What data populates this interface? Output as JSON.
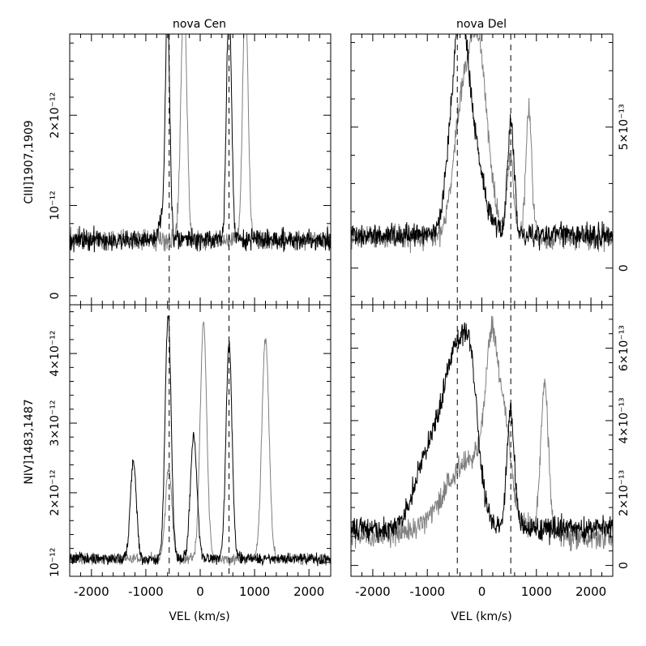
{
  "figure": {
    "panel_titles": [
      "nova Cen",
      "nova Del"
    ],
    "row_labels": [
      "CIII]1907,1909",
      "NIV]1483,1487"
    ],
    "xlabel": "VEL (km/s)",
    "xlim": [
      -2400,
      2400
    ],
    "xticks": [
      -2000,
      -1000,
      0,
      1000,
      2000
    ],
    "xtick_labels": [
      "-2000",
      "-1000",
      "0",
      "1000",
      "2000"
    ]
  },
  "chart_data": [
    {
      "type": "line",
      "panel": "top-left",
      "title": "nova Cen",
      "ylabel": "CIII]1907,1909",
      "xlabel": "",
      "xlim": [
        -2400,
        2400
      ],
      "ylim": [
        -0.1,
        2.9
      ],
      "ytick_labels": [
        {
          "label": "0",
          "value": 0
        },
        {
          "label": "10⁻¹²",
          "value": 1
        },
        {
          "label": "2×10⁻¹²",
          "value": 2
        }
      ],
      "reference_lines_kms": [
        -570,
        530
      ],
      "series": [
        {
          "color": "#000000",
          "baseline": 0.62,
          "noise": 0.07,
          "peaks": [
            [
              -600,
              2.55,
              40
            ],
            [
              530,
              2.7,
              45
            ],
            [
              -700,
              0.2,
              60
            ]
          ]
        },
        {
          "color": "#7f7f7f",
          "baseline": 0.62,
          "noise": 0.07,
          "peaks": [
            [
              -300,
              2.65,
              55
            ],
            [
              830,
              2.7,
              50
            ]
          ]
        }
      ]
    },
    {
      "type": "line",
      "panel": "top-right",
      "title": "nova Del",
      "ylabel": "",
      "xlabel": "",
      "xlim": [
        -2400,
        2400
      ],
      "ylim": [
        -0.13,
        0.83
      ],
      "ytick_labels": [
        {
          "label": "0",
          "value": 0
        },
        {
          "label": "5×10⁻¹³",
          "value": 0.5
        }
      ],
      "reference_lines_kms": [
        -450,
        530
      ],
      "series": [
        {
          "color": "#000000",
          "baseline": 0.12,
          "noise": 0.025,
          "peaks": [
            [
              -420,
              0.6,
              160
            ],
            [
              -200,
              0.28,
              220
            ],
            [
              530,
              0.4,
              60
            ]
          ]
        },
        {
          "color": "#7f7f7f",
          "baseline": 0.11,
          "noise": 0.025,
          "peaks": [
            [
              -100,
              0.72,
              190
            ],
            [
              -420,
              0.28,
              140
            ],
            [
              520,
              0.3,
              60
            ],
            [
              860,
              0.45,
              55
            ]
          ]
        }
      ]
    },
    {
      "type": "line",
      "panel": "bottom-left",
      "title": "",
      "ylabel": "NIV]1483,1487",
      "xlabel": "VEL (km/s)",
      "xlim": [
        -2400,
        2400
      ],
      "ylim": [
        0.8,
        4.7
      ],
      "ytick_labels": [
        {
          "label": "10⁻¹²",
          "value": 1
        },
        {
          "label": "2×10⁻¹²",
          "value": 2
        },
        {
          "label": "3×10⁻¹²",
          "value": 3
        },
        {
          "label": "4×10⁻¹²",
          "value": 4
        }
      ],
      "reference_lines_kms": [
        -570,
        530
      ],
      "series": [
        {
          "color": "#000000",
          "baseline": 1.05,
          "noise": 0.05,
          "peaks": [
            [
              -1230,
              1.4,
              55
            ],
            [
              -590,
              3.5,
              55
            ],
            [
              -120,
              1.75,
              60
            ],
            [
              530,
              3.1,
              55
            ]
          ]
        },
        {
          "color": "#7f7f7f",
          "baseline": 1.05,
          "noise": 0.05,
          "peaks": [
            [
              -580,
              1.3,
              60
            ],
            [
              60,
              3.4,
              60
            ],
            [
              1200,
              3.2,
              65
            ]
          ]
        }
      ]
    },
    {
      "type": "line",
      "panel": "bottom-right",
      "title": "",
      "ylabel": "",
      "xlabel": "VEL (km/s)",
      "xlim": [
        -2400,
        2400
      ],
      "ylim": [
        -0.03,
        0.72
      ],
      "ytick_labels": [
        {
          "label": "0",
          "value": 0
        },
        {
          "label": "2×10⁻¹³",
          "value": 0.2
        },
        {
          "label": "4×10⁻¹³",
          "value": 0.4
        },
        {
          "label": "6×10⁻¹³",
          "value": 0.6
        }
      ],
      "reference_lines_kms": [
        -450,
        530
      ],
      "series": [
        {
          "color": "#000000",
          "baseline": 0.1,
          "noise": 0.02,
          "peaks": [
            [
              -450,
              0.48,
              260
            ],
            [
              -1000,
              0.18,
              250
            ],
            [
              -200,
              0.2,
              120
            ],
            [
              530,
              0.33,
              70
            ]
          ]
        },
        {
          "color": "#7f7f7f",
          "baseline": 0.08,
          "noise": 0.02,
          "peaks": [
            [
              -150,
              0.22,
              500
            ],
            [
              200,
              0.4,
              120
            ],
            [
              450,
              0.18,
              90
            ],
            [
              1150,
              0.42,
              70
            ]
          ]
        }
      ]
    }
  ]
}
